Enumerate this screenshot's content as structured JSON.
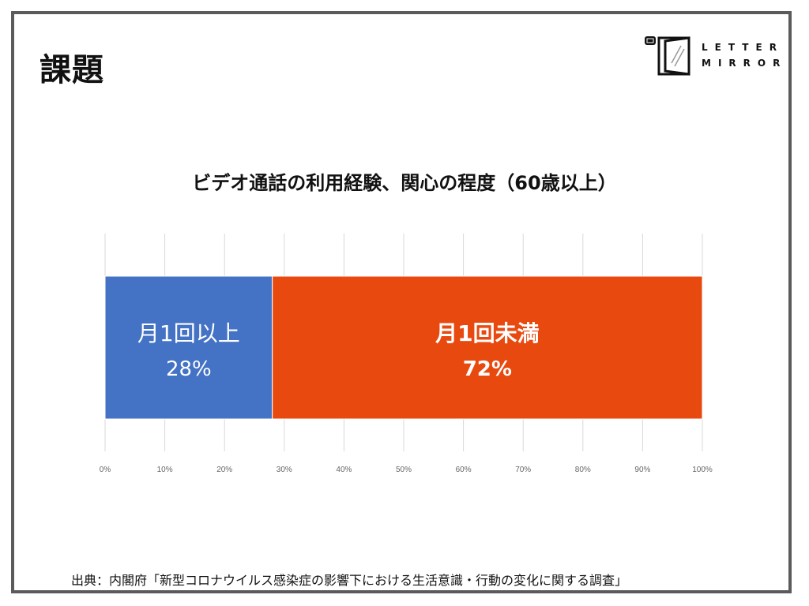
{
  "slide": {
    "title": "課題",
    "logo_line1": "LETTER",
    "logo_line2": "MIRROR",
    "source": "出典：内閣府「新型コロナウイルス感染症の影響下における生活意識・行動の変化に関する調査」"
  },
  "chart_data": {
    "type": "bar",
    "orientation": "horizontal",
    "stacked": true,
    "title": "ビデオ通話の利用経験、関心の程度（60歳以上）",
    "xlabel": "",
    "ylabel": "",
    "xlim": [
      0,
      100
    ],
    "ticks": [
      "0%",
      "10%",
      "20%",
      "30%",
      "40%",
      "50%",
      "60%",
      "70%",
      "80%",
      "90%",
      "100%"
    ],
    "tick_values": [
      0,
      10,
      20,
      30,
      40,
      50,
      60,
      70,
      80,
      90,
      100
    ],
    "grid": true,
    "segments": [
      {
        "label": "月1回以上",
        "value": 28,
        "value_label": "28%",
        "color": "#4472c4"
      },
      {
        "label": "月1回未満",
        "value": 72,
        "value_label": "72%",
        "color": "#e8490f"
      }
    ]
  }
}
